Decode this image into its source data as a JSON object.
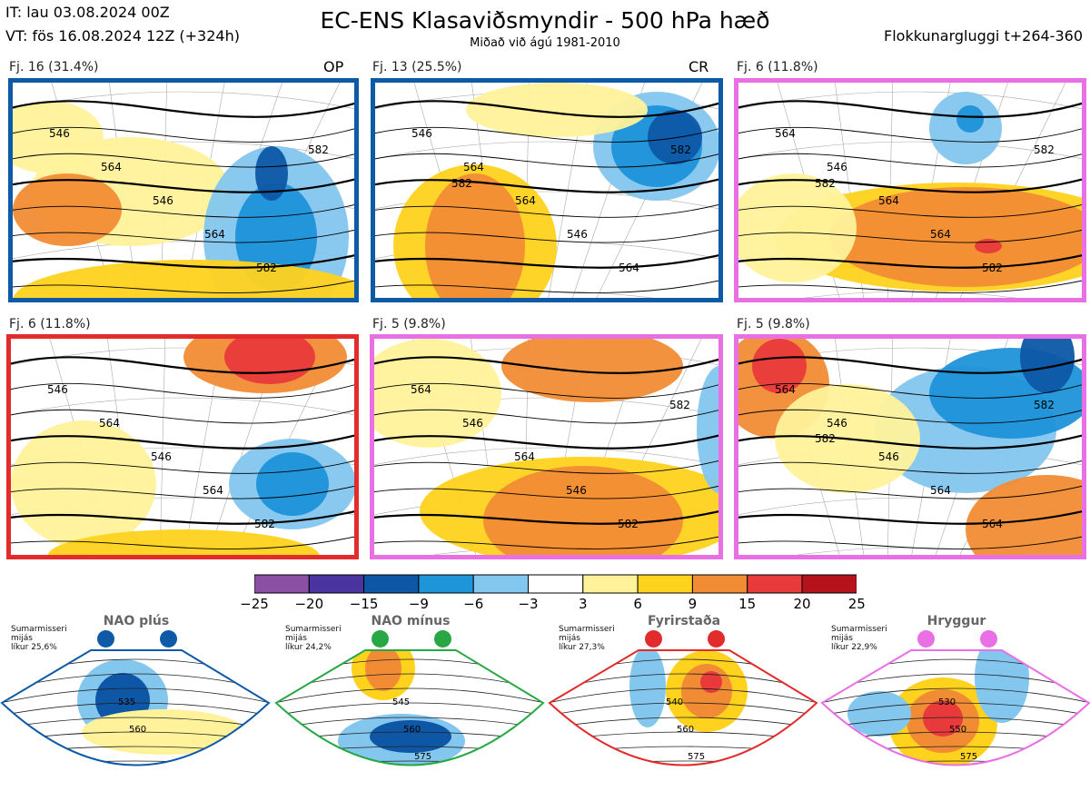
{
  "header": {
    "init_time": "IT: lau 03.08.2024 00Z",
    "valid_time": "VT: fös 16.08.2024 12Z  (+324h)",
    "title": "EC-ENS Klasaviðsmyndir - 500 hPa hæð",
    "subtitle": "Miðað við ágú 1981-2010",
    "window": "Flokkunargluggi t+264-360"
  },
  "colors": {
    "nao_plus": "#0e5aa7",
    "nao_minus": "#27a844",
    "blocking": "#e22b2b",
    "ridge": "#e86fe4"
  },
  "panels": [
    {
      "label": "Fj. 16 (31.4%)",
      "tag": "OP",
      "border": "#0e5aa7",
      "contours": [
        "546",
        "564",
        "546",
        "564",
        "582",
        "582"
      ]
    },
    {
      "label": "Fj. 13 (25.5%)",
      "tag": "CR",
      "border": "#0e5aa7",
      "contours": [
        "546",
        "564",
        "564",
        "546",
        "564",
        "582",
        "582"
      ]
    },
    {
      "label": "Fj. 6 (11.8%)",
      "tag": "",
      "border": "#e86fe4",
      "contours": [
        "564",
        "546",
        "564",
        "564",
        "582",
        "582",
        "582"
      ]
    },
    {
      "label": "Fj. 6 (11.8%)",
      "tag": "",
      "border": "#e22b2b",
      "contours": [
        "546",
        "564",
        "546",
        "564",
        "582"
      ]
    },
    {
      "label": "Fj. 5 (9.8%)",
      "tag": "",
      "border": "#e86fe4",
      "contours": [
        "564",
        "546",
        "564",
        "546",
        "582",
        "582"
      ]
    },
    {
      "label": "Fj. 5 (9.8%)",
      "tag": "",
      "border": "#e86fe4",
      "contours": [
        "564",
        "546",
        "546",
        "564",
        "564",
        "582",
        "582"
      ]
    }
  ],
  "colorbar": {
    "ticks": [
      "−25",
      "−20",
      "−15",
      "−9",
      "−6",
      "−3",
      "3",
      "6",
      "9",
      "15",
      "20",
      "25"
    ],
    "colors": [
      "#8b4fa3",
      "#4a35a0",
      "#0d57a6",
      "#1e94d9",
      "#83c6ee",
      "#ffffff",
      "#fff29b",
      "#ffd21e",
      "#f28c34",
      "#e83a3a",
      "#b5121b"
    ]
  },
  "regimes": [
    {
      "name": "NAO plús",
      "info": [
        "Sumarmisseri",
        "mijás",
        "líkur 25,6%"
      ],
      "color": "#0e5aa7",
      "contours": [
        "535",
        "560"
      ]
    },
    {
      "name": "NAO mínus",
      "info": [
        "Sumarmisseri",
        "mijás",
        "líkur 24,2%"
      ],
      "color": "#27a844",
      "contours": [
        "545",
        "560",
        "575"
      ]
    },
    {
      "name": "Fyrirstaða",
      "info": [
        "Sumarmisseri",
        "mijás",
        "líkur 27,3%"
      ],
      "color": "#e22b2b",
      "contours": [
        "540",
        "560",
        "575"
      ]
    },
    {
      "name": "Hryggur",
      "info": [
        "Sumarmisseri",
        "mijás",
        "líkur 22,9%"
      ],
      "color": "#e86fe4",
      "contours": [
        "530",
        "550",
        "575"
      ]
    }
  ]
}
